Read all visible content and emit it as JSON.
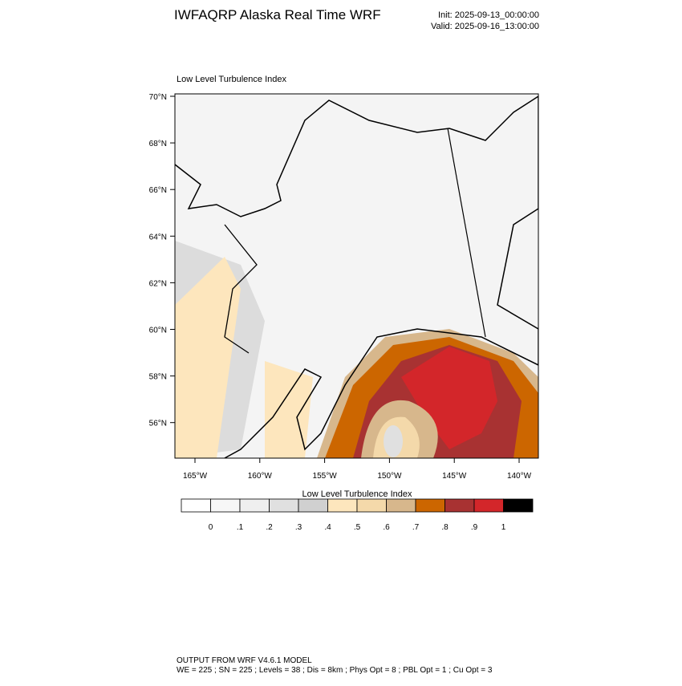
{
  "header": {
    "title": "IWFAQRP Alaska Real Time WRF",
    "init": "Init: 2025-09-13_00:00:00",
    "valid": "Valid: 2025-09-16_13:00:00"
  },
  "map": {
    "label": "Low Level Turbulence Index",
    "lat_labels": [
      "70°N",
      "68°N",
      "66°N",
      "64°N",
      "62°N",
      "60°N",
      "58°N",
      "56°N"
    ],
    "lon_labels": [
      "165°W",
      "160°W",
      "155°W",
      "150°W",
      "145°W",
      "140°W"
    ]
  },
  "colorbar": {
    "title": "Low Level Turbulence Index",
    "labels": [
      "0",
      ".1",
      ".2",
      ".3",
      ".4",
      ".5",
      ".6",
      ".7",
      ".8",
      ".9",
      "1"
    ],
    "colors": [
      "#ffffff",
      "#f7f7f7",
      "#efefef",
      "#e0e0e0",
      "#d0d0d0",
      "#fde6bd",
      "#f4d9aa",
      "#d7b78c",
      "#cc6600",
      "#a83232",
      "#d3262a",
      "#000000"
    ]
  },
  "footer": {
    "lines": [
      "OUTPUT FROM WRF V4.6.1 MODEL",
      "WE = 225 ; SN = 225 ; Levels = 38 ; Dis = 8km ; Phys Opt = 8 ; PBL Opt = 1 ; Cu Opt = 3"
    ]
  }
}
